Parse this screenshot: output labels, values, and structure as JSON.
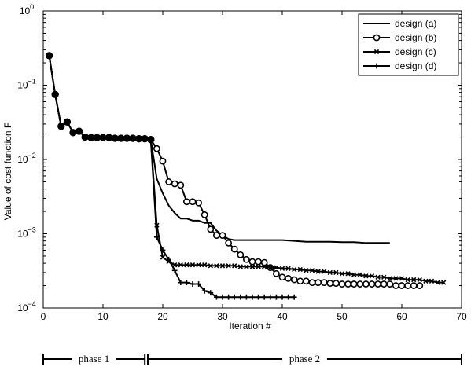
{
  "chart_data": {
    "type": "line",
    "title": "",
    "xlabel": "Iteration #",
    "ylabel": "Value of cost function F",
    "xlim": [
      0,
      70
    ],
    "ylim": [
      0.0001,
      1
    ],
    "yscale": "log",
    "xticks": [
      0,
      10,
      20,
      30,
      40,
      50,
      60,
      70
    ],
    "yticks": [
      {
        "value": 0.0001,
        "base": "10",
        "exp": "−4"
      },
      {
        "value": 0.001,
        "base": "10",
        "exp": "−3"
      },
      {
        "value": 0.01,
        "base": "10",
        "exp": "−2"
      },
      {
        "value": 0.1,
        "base": "10",
        "exp": "−1"
      },
      {
        "value": 1,
        "base": "10",
        "exp": "0"
      }
    ],
    "grid": false,
    "legend_position": "top-right",
    "series": [
      {
        "name": "design (a)",
        "marker": "none",
        "x": [
          1,
          2,
          3,
          4,
          5,
          6,
          7,
          8,
          9,
          10,
          11,
          12,
          13,
          14,
          15,
          16,
          17,
          18,
          19,
          20,
          21,
          22,
          23,
          24,
          25,
          26,
          27,
          28,
          29,
          30,
          31,
          32,
          34,
          36,
          38,
          40,
          42,
          44,
          46,
          48,
          50,
          52,
          54,
          56,
          58
        ],
        "y": [
          0.25,
          0.075,
          0.028,
          0.032,
          0.023,
          0.024,
          0.02,
          0.0197,
          0.0197,
          0.0197,
          0.0197,
          0.0193,
          0.0193,
          0.0193,
          0.0193,
          0.019,
          0.019,
          0.0185,
          0.0055,
          0.0035,
          0.0024,
          0.0019,
          0.0016,
          0.0016,
          0.0015,
          0.0015,
          0.0014,
          0.0014,
          0.0011,
          0.00095,
          0.00085,
          0.00082,
          0.00082,
          0.00082,
          0.00082,
          0.00082,
          0.0008,
          0.00078,
          0.00078,
          0.00078,
          0.00077,
          0.00077,
          0.00075,
          0.00075,
          0.00075
        ]
      },
      {
        "name": "design (b)",
        "marker": "circle",
        "x": [
          1,
          2,
          3,
          4,
          5,
          6,
          7,
          8,
          9,
          10,
          11,
          12,
          13,
          14,
          15,
          16,
          17,
          18,
          19,
          20,
          21,
          22,
          23,
          24,
          25,
          26,
          27,
          28,
          29,
          30,
          31,
          32,
          33,
          34,
          35,
          36,
          37,
          38,
          39,
          40,
          41,
          42,
          43,
          44,
          45,
          46,
          47,
          48,
          49,
          50,
          51,
          52,
          53,
          54,
          55,
          56,
          57,
          58,
          59,
          60,
          61,
          62,
          63
        ],
        "y": [
          0.25,
          0.075,
          0.028,
          0.032,
          0.023,
          0.024,
          0.02,
          0.0197,
          0.0197,
          0.0197,
          0.0197,
          0.0193,
          0.0193,
          0.0193,
          0.0193,
          0.019,
          0.019,
          0.0185,
          0.014,
          0.0095,
          0.005,
          0.0047,
          0.0045,
          0.0027,
          0.0027,
          0.0026,
          0.0018,
          0.00115,
          0.00095,
          0.00095,
          0.00075,
          0.00062,
          0.00052,
          0.00045,
          0.00042,
          0.00042,
          0.00041,
          0.00035,
          0.00029,
          0.00026,
          0.00025,
          0.00024,
          0.00023,
          0.00023,
          0.00022,
          0.00022,
          0.00022,
          0.000215,
          0.000215,
          0.00021,
          0.00021,
          0.00021,
          0.00021,
          0.00021,
          0.00021,
          0.00021,
          0.00021,
          0.00021,
          0.0002,
          0.0002,
          0.0002,
          0.0002,
          0.0002
        ]
      },
      {
        "name": "design (c)",
        "marker": "x",
        "x": [
          18,
          19,
          20,
          21,
          22,
          23,
          24,
          25,
          26,
          27,
          28,
          29,
          30,
          31,
          32,
          33,
          34,
          35,
          36,
          37,
          38,
          39,
          40,
          41,
          42,
          43,
          44,
          45,
          46,
          47,
          48,
          49,
          50,
          51,
          52,
          53,
          54,
          55,
          56,
          57,
          58,
          59,
          60,
          61,
          62,
          63,
          64,
          65,
          66,
          67
        ],
        "y": [
          0.0185,
          0.0013,
          0.00048,
          0.00042,
          0.00038,
          0.00038,
          0.00038,
          0.00038,
          0.00038,
          0.00038,
          0.00037,
          0.00037,
          0.00037,
          0.00037,
          0.00037,
          0.00036,
          0.00036,
          0.00036,
          0.00036,
          0.00036,
          0.00035,
          0.00035,
          0.00034,
          0.00034,
          0.00033,
          0.00033,
          0.00032,
          0.00032,
          0.00031,
          0.00031,
          0.0003,
          0.0003,
          0.00029,
          0.00029,
          0.00028,
          0.00028,
          0.00027,
          0.00027,
          0.00026,
          0.00026,
          0.00025,
          0.00025,
          0.00025,
          0.00024,
          0.00024,
          0.00024,
          0.00023,
          0.00023,
          0.00022,
          0.00022
        ]
      },
      {
        "name": "design (d)",
        "marker": "plus",
        "x": [
          1,
          2,
          3,
          4,
          5,
          6,
          7,
          8,
          9,
          10,
          11,
          12,
          13,
          14,
          15,
          16,
          17,
          18,
          19,
          20,
          21,
          22,
          23,
          24,
          25,
          26,
          27,
          28,
          29,
          30,
          31,
          32,
          33,
          34,
          35,
          36,
          37,
          38,
          39,
          40,
          41,
          42
        ],
        "y": [
          0.25,
          0.075,
          0.028,
          0.032,
          0.023,
          0.024,
          0.02,
          0.0197,
          0.0197,
          0.0197,
          0.0197,
          0.0193,
          0.0193,
          0.0193,
          0.0193,
          0.019,
          0.019,
          0.0185,
          0.0009,
          0.0006,
          0.00045,
          0.00032,
          0.00022,
          0.00022,
          0.00021,
          0.00021,
          0.00017,
          0.00016,
          0.00014,
          0.00014,
          0.00014,
          0.00014,
          0.00014,
          0.00014,
          0.00014,
          0.00014,
          0.00014,
          0.00014,
          0.00014,
          0.00014,
          0.00014,
          0.00014
        ]
      }
    ],
    "phases": [
      {
        "label": "phase 1",
        "start": 0,
        "end": 17
      },
      {
        "label": "phase 2",
        "start": 17.5,
        "end": 70
      }
    ]
  }
}
